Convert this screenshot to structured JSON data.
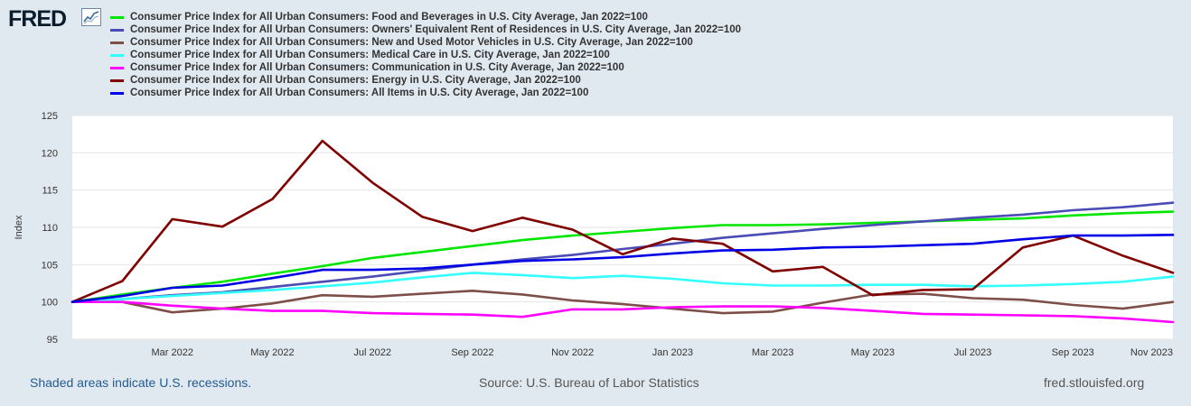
{
  "brand": {
    "logo_text": "FRED"
  },
  "chart_data": {
    "type": "line",
    "ylabel": "Index",
    "xlabel": "",
    "ylim": [
      95,
      125
    ],
    "yticks": [
      95,
      100,
      105,
      110,
      115,
      120,
      125
    ],
    "x": [
      "2022-01",
      "2022-02",
      "2022-03",
      "2022-04",
      "2022-05",
      "2022-06",
      "2022-07",
      "2022-08",
      "2022-09",
      "2022-10",
      "2022-11",
      "2022-12",
      "2023-01",
      "2023-02",
      "2023-03",
      "2023-04",
      "2023-05",
      "2023-06",
      "2023-07",
      "2023-08",
      "2023-09",
      "2023-10",
      "2023-11"
    ],
    "xtick_labels": [
      {
        "index": 2,
        "label": "Mar 2022"
      },
      {
        "index": 4,
        "label": "May 2022"
      },
      {
        "index": 6,
        "label": "Jul 2022"
      },
      {
        "index": 8,
        "label": "Sep 2022"
      },
      {
        "index": 10,
        "label": "Nov 2022"
      },
      {
        "index": 12,
        "label": "Jan 2023"
      },
      {
        "index": 14,
        "label": "Mar 2023"
      },
      {
        "index": 16,
        "label": "May 2023"
      },
      {
        "index": 18,
        "label": "Jul 2023"
      },
      {
        "index": 20,
        "label": "Sep 2023"
      },
      {
        "index": 22,
        "label": "Nov 2023"
      }
    ],
    "grid": true,
    "legend_position": "top",
    "series": [
      {
        "name": "Consumer Price Index for All Urban Consumers: Food and Beverages in U.S. City Average, Jan 2022=100",
        "color": "#00e600",
        "values": [
          100,
          101,
          101.9,
          102.7,
          103.8,
          104.8,
          105.9,
          106.7,
          107.5,
          108.3,
          108.9,
          109.4,
          109.9,
          110.3,
          110.3,
          110.4,
          110.6,
          110.8,
          111.0,
          111.2,
          111.6,
          111.9,
          112.1
        ]
      },
      {
        "name": "Consumer Price Index for All Urban Consumers: Owners' Equivalent Rent of Residences in U.S. City Average, Jan 2022=100",
        "color": "#4b4bb5",
        "values": [
          100,
          100.4,
          100.9,
          101.3,
          102.0,
          102.7,
          103.4,
          104.2,
          105.0,
          105.7,
          106.3,
          107.1,
          107.8,
          108.6,
          109.2,
          109.8,
          110.3,
          110.8,
          111.3,
          111.7,
          112.3,
          112.7,
          113.3
        ]
      },
      {
        "name": "Consumer Price Index for All Urban Consumers: New and Used Motor Vehicles in U.S. City Average, Jan 2022=100",
        "color": "#7d4f48",
        "values": [
          100,
          100.0,
          98.6,
          99.1,
          99.8,
          100.9,
          100.7,
          101.1,
          101.5,
          101.0,
          100.2,
          99.7,
          99.1,
          98.5,
          98.7,
          99.9,
          101.0,
          101.1,
          100.5,
          100.3,
          99.6,
          99.1,
          100.0
        ]
      },
      {
        "name": "Consumer Price Index for All Urban Consumers: Medical Care in U.S. City Average, Jan 2022=100",
        "color": "#33ffff",
        "values": [
          100,
          100.4,
          100.8,
          101.2,
          101.6,
          102.1,
          102.6,
          103.3,
          103.9,
          103.6,
          103.2,
          103.5,
          103.1,
          102.5,
          102.2,
          102.2,
          102.3,
          102.3,
          102.1,
          102.2,
          102.4,
          102.7,
          103.4
        ]
      },
      {
        "name": "Consumer Price Index for All Urban Consumers: Communication in U.S. City Average, Jan 2022=100",
        "color": "#ff00ff",
        "values": [
          100,
          100.0,
          99.5,
          99.1,
          98.8,
          98.8,
          98.5,
          98.4,
          98.3,
          98.0,
          99.0,
          99.0,
          99.3,
          99.4,
          99.4,
          99.2,
          98.8,
          98.4,
          98.3,
          98.2,
          98.1,
          97.8,
          97.3
        ]
      },
      {
        "name": "Consumer Price Index for All Urban Consumers: Energy in U.S. City Average, Jan 2022=100",
        "color": "#800000",
        "values": [
          100,
          102.8,
          111.1,
          110.1,
          113.8,
          121.6,
          116.0,
          111.4,
          109.5,
          111.3,
          109.7,
          106.4,
          108.5,
          107.8,
          104.1,
          104.7,
          100.9,
          101.6,
          101.7,
          107.3,
          108.9,
          106.2,
          103.9
        ]
      },
      {
        "name": "Consumer Price Index for All Urban Consumers: All Items in U.S. City Average, Jan 2022=100",
        "color": "#0000e6",
        "values": [
          100,
          100.8,
          101.9,
          102.2,
          103.2,
          104.3,
          104.3,
          104.5,
          105.0,
          105.5,
          105.7,
          106.0,
          106.5,
          106.9,
          107.0,
          107.3,
          107.4,
          107.6,
          107.8,
          108.4,
          108.9,
          108.9,
          109.0
        ]
      }
    ]
  },
  "footer": {
    "recession_note": "Shaded areas indicate U.S. recessions.",
    "source": "Source: U.S. Bureau of Labor Statistics",
    "site": "fred.stlouisfed.org"
  }
}
